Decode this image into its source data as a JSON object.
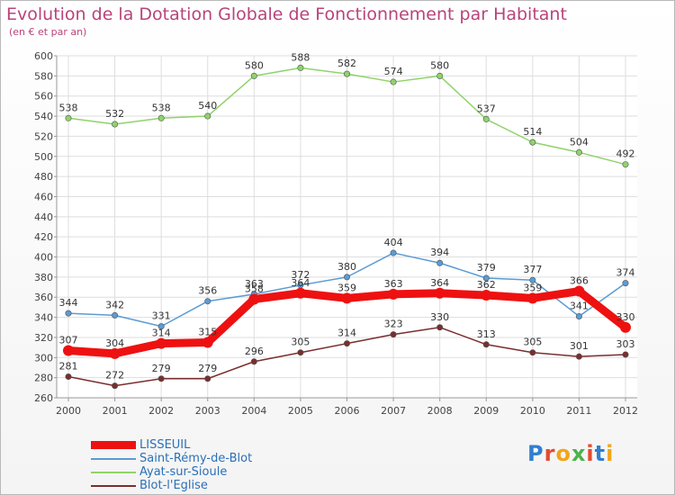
{
  "header": {
    "title": "Evolution de la Dotation Globale de Fonctionnement par Habitant",
    "subtitle": "(en € et par an)"
  },
  "logo": {
    "text": "Proxiti"
  },
  "chart_data": {
    "type": "line",
    "categories": [
      "2000",
      "2001",
      "2002",
      "2003",
      "2004",
      "2005",
      "2006",
      "2007",
      "2008",
      "2009",
      "2010",
      "2011",
      "2012"
    ],
    "ylim": [
      260,
      600
    ],
    "yticks": [
      260,
      280,
      300,
      320,
      340,
      360,
      380,
      400,
      420,
      440,
      460,
      480,
      500,
      520,
      540,
      560,
      580,
      600
    ],
    "grid": true,
    "legend_position": "bottom-left",
    "series": [
      {
        "name": "Ayat-sur-Sioule",
        "color": "#8fd36a",
        "values": [
          538,
          532,
          538,
          540,
          580,
          588,
          582,
          574,
          580,
          537,
          514,
          504,
          492
        ]
      },
      {
        "name": "Saint-Rémy-de-Blot",
        "color": "#5b9bd5",
        "values": [
          344,
          342,
          331,
          356,
          363,
          372,
          380,
          404,
          394,
          379,
          377,
          341,
          374
        ]
      },
      {
        "name": "Blot-l'Eglise",
        "color": "#7a2e2e",
        "values": [
          281,
          272,
          279,
          279,
          296,
          305,
          314,
          323,
          330,
          313,
          305,
          301,
          303
        ]
      },
      {
        "name": "LISSEUIL",
        "color": "#ee1111",
        "values": [
          307,
          304,
          314,
          315,
          358,
          364,
          359,
          363,
          364,
          362,
          359,
          366,
          330
        ]
      }
    ],
    "legend_order": [
      "LISSEUIL",
      "Saint-Rémy-de-Blot",
      "Ayat-sur-Sioule",
      "Blot-l'Eglise"
    ]
  }
}
